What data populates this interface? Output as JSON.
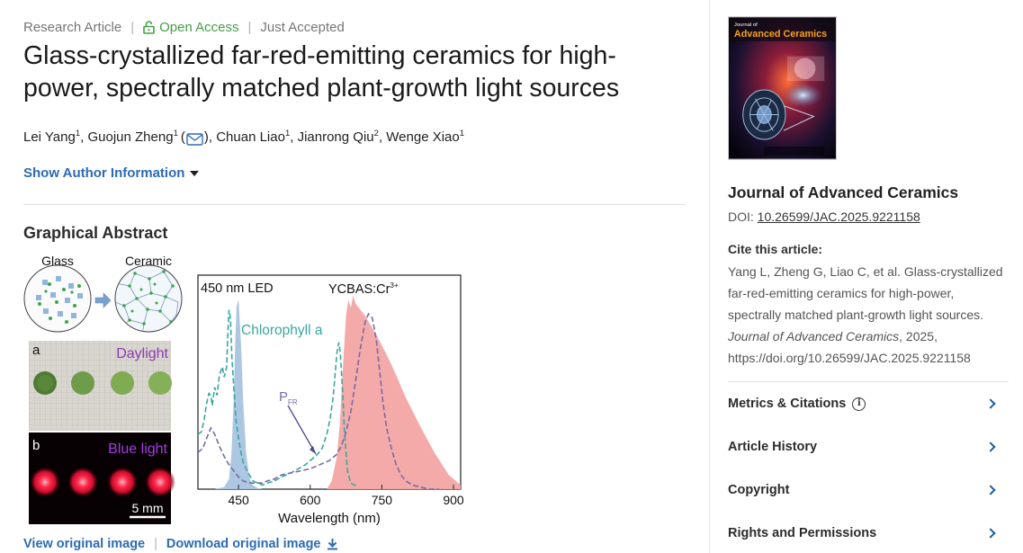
{
  "article": {
    "type": "Research Article",
    "open_access": "Open Access",
    "status": "Just Accepted",
    "title": "Glass-crystallized far-red-emitting ceramics for high-power, spectrally matched plant-growth light sources",
    "authors": [
      {
        "name": "Lei Yang",
        "aff": "1"
      },
      {
        "name": "Guojun Zheng",
        "aff": "1"
      },
      {
        "name": "Chuan Liao",
        "aff": "1"
      },
      {
        "name": "Jianrong Qiu",
        "aff": "2"
      },
      {
        "name": "Wenge Xiao",
        "aff": "1"
      }
    ],
    "show_author_info": "Show Author Information",
    "graphical_abstract_heading": "Graphical Abstract",
    "view_original": "View original image",
    "download_original": "Download original image"
  },
  "figure": {
    "glass_label": "Glass",
    "ceramic_label": "Ceramic",
    "panel_a": "a",
    "panel_b": "b",
    "daylight_label": "Daylight",
    "bluelight_label": "Blue light",
    "scale_bar": "5 mm",
    "chart_data": {
      "type": "line",
      "title": "",
      "xlabel": "Wavelength (nm)",
      "ylabel": "",
      "xlim": [
        365,
        915
      ],
      "ylim": [
        0,
        1.05
      ],
      "x_ticks": [
        450,
        600,
        750,
        900
      ],
      "grid": false,
      "annotations": [
        "450 nm LED",
        "YCBAS:Cr",
        "3+",
        "Chlorophyll a",
        "P",
        "FR"
      ],
      "series": [
        {
          "name": "450 nm LED",
          "style": "filled area",
          "color": "#a9c4e0",
          "x": [
            400,
            420,
            430,
            435,
            440,
            443,
            446,
            450,
            455,
            460,
            466,
            472,
            480,
            490,
            500
          ],
          "y": [
            0,
            0.01,
            0.05,
            0.17,
            0.45,
            0.72,
            0.9,
            0.93,
            0.72,
            0.42,
            0.18,
            0.06,
            0.02,
            0.005,
            0
          ]
        },
        {
          "name": "YCBAS:Cr3+",
          "style": "filled area",
          "color": "#f2a5a4",
          "x": [
            635,
            645,
            655,
            662,
            668,
            675,
            680,
            685,
            690,
            695,
            705,
            715,
            725,
            740,
            760,
            780,
            800,
            830,
            860,
            890,
            915
          ],
          "y": [
            0,
            0.04,
            0.15,
            0.32,
            0.58,
            0.85,
            0.93,
            0.89,
            0.95,
            0.91,
            0.88,
            0.85,
            0.81,
            0.75,
            0.66,
            0.56,
            0.45,
            0.31,
            0.18,
            0.07,
            0.02
          ]
        },
        {
          "name": "Chlorophyll a",
          "style": "dashed line",
          "color": "#3aa7a0",
          "x": [
            365,
            372,
            378,
            383,
            388,
            392,
            395,
            400,
            405,
            410,
            416,
            420,
            425,
            428,
            430,
            433,
            436,
            440,
            445,
            450,
            455,
            460,
            470,
            480,
            490,
            500,
            510,
            525,
            540,
            560,
            575,
            590,
            605,
            615,
            625,
            635,
            642,
            648,
            652,
            656,
            660,
            663,
            668,
            672,
            678,
            685,
            700
          ],
          "y": [
            0.27,
            0.28,
            0.34,
            0.42,
            0.47,
            0.46,
            0.41,
            0.5,
            0.46,
            0.56,
            0.6,
            0.55,
            0.6,
            0.78,
            0.88,
            0.84,
            0.65,
            0.5,
            0.33,
            0.25,
            0.18,
            0.13,
            0.08,
            0.04,
            0.03,
            0.02,
            0.03,
            0.04,
            0.06,
            0.08,
            0.1,
            0.12,
            0.15,
            0.17,
            0.2,
            0.27,
            0.35,
            0.45,
            0.56,
            0.67,
            0.72,
            0.67,
            0.47,
            0.27,
            0.09,
            0.03,
            0.01
          ]
        },
        {
          "name": "PFR",
          "style": "dashed line",
          "color": "#7a6aa6",
          "x": [
            365,
            375,
            385,
            392,
            400,
            410,
            420,
            430,
            440,
            450,
            460,
            475,
            490,
            500,
            510,
            525,
            540,
            560,
            580,
            600,
            620,
            640,
            655,
            665,
            675,
            685,
            695,
            705,
            715,
            722,
            730,
            738,
            745,
            752,
            760,
            770,
            780,
            790,
            800,
            815,
            830,
            850,
            870
          ],
          "y": [
            0.18,
            0.2,
            0.26,
            0.3,
            0.27,
            0.21,
            0.16,
            0.12,
            0.09,
            0.06,
            0.04,
            0.03,
            0.03,
            0.03,
            0.04,
            0.05,
            0.07,
            0.08,
            0.09,
            0.1,
            0.12,
            0.14,
            0.17,
            0.21,
            0.28,
            0.38,
            0.53,
            0.69,
            0.82,
            0.86,
            0.84,
            0.74,
            0.59,
            0.43,
            0.3,
            0.2,
            0.12,
            0.07,
            0.04,
            0.02,
            0.01,
            0.0,
            0.0
          ]
        }
      ]
    }
  },
  "sidebar": {
    "journal_name": "Journal of Advanced Ceramics",
    "doi_label": "DOI:",
    "doi": "10.26599/JAC.2025.9221158",
    "cite_heading": "Cite this article:",
    "cite_text_1": "Yang L, Zheng G, Liao C, et al. Glass-crystallized far-red-emitting ceramics for high-power, spectrally matched plant-growth light sources.",
    "cite_journal": "Journal of Advanced Ceramics",
    "cite_text_2": ", 2025, https://doi.org/10.26599/JAC.2025.9221158",
    "cover": {
      "line1": "Journal of",
      "line2": "Advanced Ceramics"
    },
    "rows": [
      {
        "label": "Metrics & Citations",
        "icon": "info-icon"
      },
      {
        "label": "Article History"
      },
      {
        "label": "Copyright"
      },
      {
        "label": "Rights and Permissions"
      }
    ]
  },
  "colors": {
    "link": "#2d6bb3",
    "open_access": "#43a047",
    "led_fill": "#a9c4e0",
    "ceramic_fill": "#f2a5a4",
    "chlorophyll": "#3aa7a0",
    "pfr": "#7a6aa6"
  }
}
